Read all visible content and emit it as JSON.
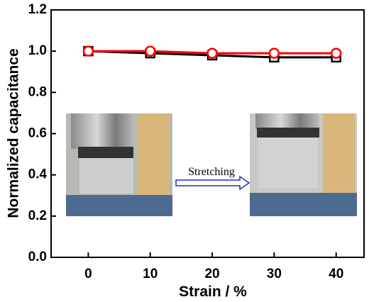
{
  "chart_data": {
    "type": "line",
    "x_label": "Strain / %",
    "y_label": "Normalized capacitance",
    "annotation": "Stretching",
    "x": [
      0,
      10,
      20,
      30,
      40
    ],
    "series": [
      {
        "color": "#000000",
        "marker": "square",
        "values": [
          1.0,
          0.99,
          0.98,
          0.97,
          0.97
        ]
      },
      {
        "color": "#ff0000",
        "marker": "circle",
        "values": [
          1.0,
          1.0,
          0.99,
          0.99,
          0.99
        ]
      }
    ],
    "xlim": [
      -6,
      44.5
    ],
    "xticks": [
      0,
      10,
      20,
      30,
      40
    ],
    "ylim": [
      0,
      1.2
    ],
    "yticks": [
      {
        "value": 0,
        "label": "0.0"
      },
      0.2,
      0.4,
      0.6,
      0.8,
      {
        "value": 1,
        "label": "1.0"
      },
      1.2
    ]
  }
}
